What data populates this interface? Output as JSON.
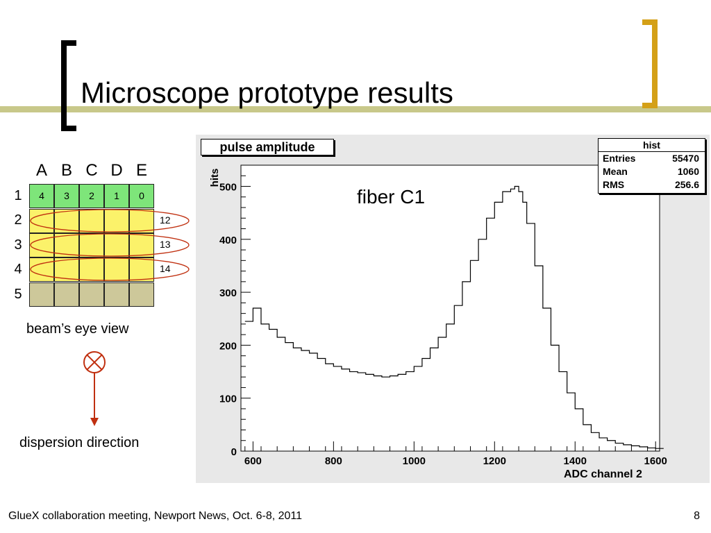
{
  "slide": {
    "title": "Microscope prototype results",
    "footer": "GlueX collaboration meeting, Newport News, Oct. 6-8, 2011",
    "page_number": "8",
    "colors": {
      "accent_bar": "#c8c88a",
      "bracket_black": "#000000",
      "bracket_gold": "#d4a017"
    }
  },
  "diagram": {
    "columns": [
      "A",
      "B",
      "C",
      "D",
      "E"
    ],
    "rows": [
      "1",
      "2",
      "3",
      "4",
      "5"
    ],
    "row1_cells": [
      "4",
      "3",
      "2",
      "1",
      "0"
    ],
    "ring_labels": [
      "12",
      "13",
      "14"
    ],
    "beam_label": "beam’s eye view",
    "dispersion_label": "dispersion direction",
    "colors": {
      "row1": "#7ee57a",
      "rows2to4": "#fbf26a",
      "row5": "#cdc89a",
      "rings": "#c03010",
      "arrow": "#c03010"
    }
  },
  "histogram": {
    "title": "pulse amplitude",
    "annotation": "fiber C1",
    "stats": {
      "name": "hist",
      "rows": [
        {
          "label": "Entries",
          "value": "55470"
        },
        {
          "label": "Mean",
          "value": "1060"
        },
        {
          "label": "RMS",
          "value": "256.6"
        }
      ]
    }
  },
  "chart_data": {
    "type": "line",
    "title": "pulse amplitude",
    "xlabel": "ADC channel 2",
    "ylabel": "hits",
    "xlim": [
      570,
      1610
    ],
    "ylim": [
      0,
      540
    ],
    "x_ticks": [
      600,
      800,
      1000,
      1200,
      1400,
      1600
    ],
    "y_ticks": [
      0,
      100,
      200,
      300,
      400,
      500
    ],
    "grid": false,
    "series": [
      {
        "name": "",
        "x": [
          580,
          600,
          620,
          640,
          660,
          680,
          700,
          720,
          740,
          760,
          780,
          800,
          820,
          840,
          860,
          880,
          900,
          920,
          940,
          960,
          980,
          1000,
          1020,
          1040,
          1060,
          1080,
          1100,
          1120,
          1140,
          1160,
          1180,
          1200,
          1220,
          1240,
          1250,
          1260,
          1270,
          1280,
          1300,
          1320,
          1340,
          1360,
          1380,
          1400,
          1420,
          1440,
          1460,
          1480,
          1500,
          1520,
          1540,
          1560,
          1580,
          1600
        ],
        "y": [
          245,
          270,
          240,
          230,
          215,
          205,
          195,
          190,
          185,
          175,
          165,
          160,
          155,
          150,
          148,
          145,
          142,
          140,
          142,
          145,
          150,
          160,
          175,
          195,
          215,
          240,
          275,
          320,
          360,
          400,
          440,
          470,
          490,
          495,
          500,
          490,
          470,
          430,
          350,
          270,
          200,
          150,
          110,
          80,
          50,
          35,
          25,
          20,
          15,
          12,
          10,
          8,
          6,
          5
        ]
      }
    ]
  }
}
